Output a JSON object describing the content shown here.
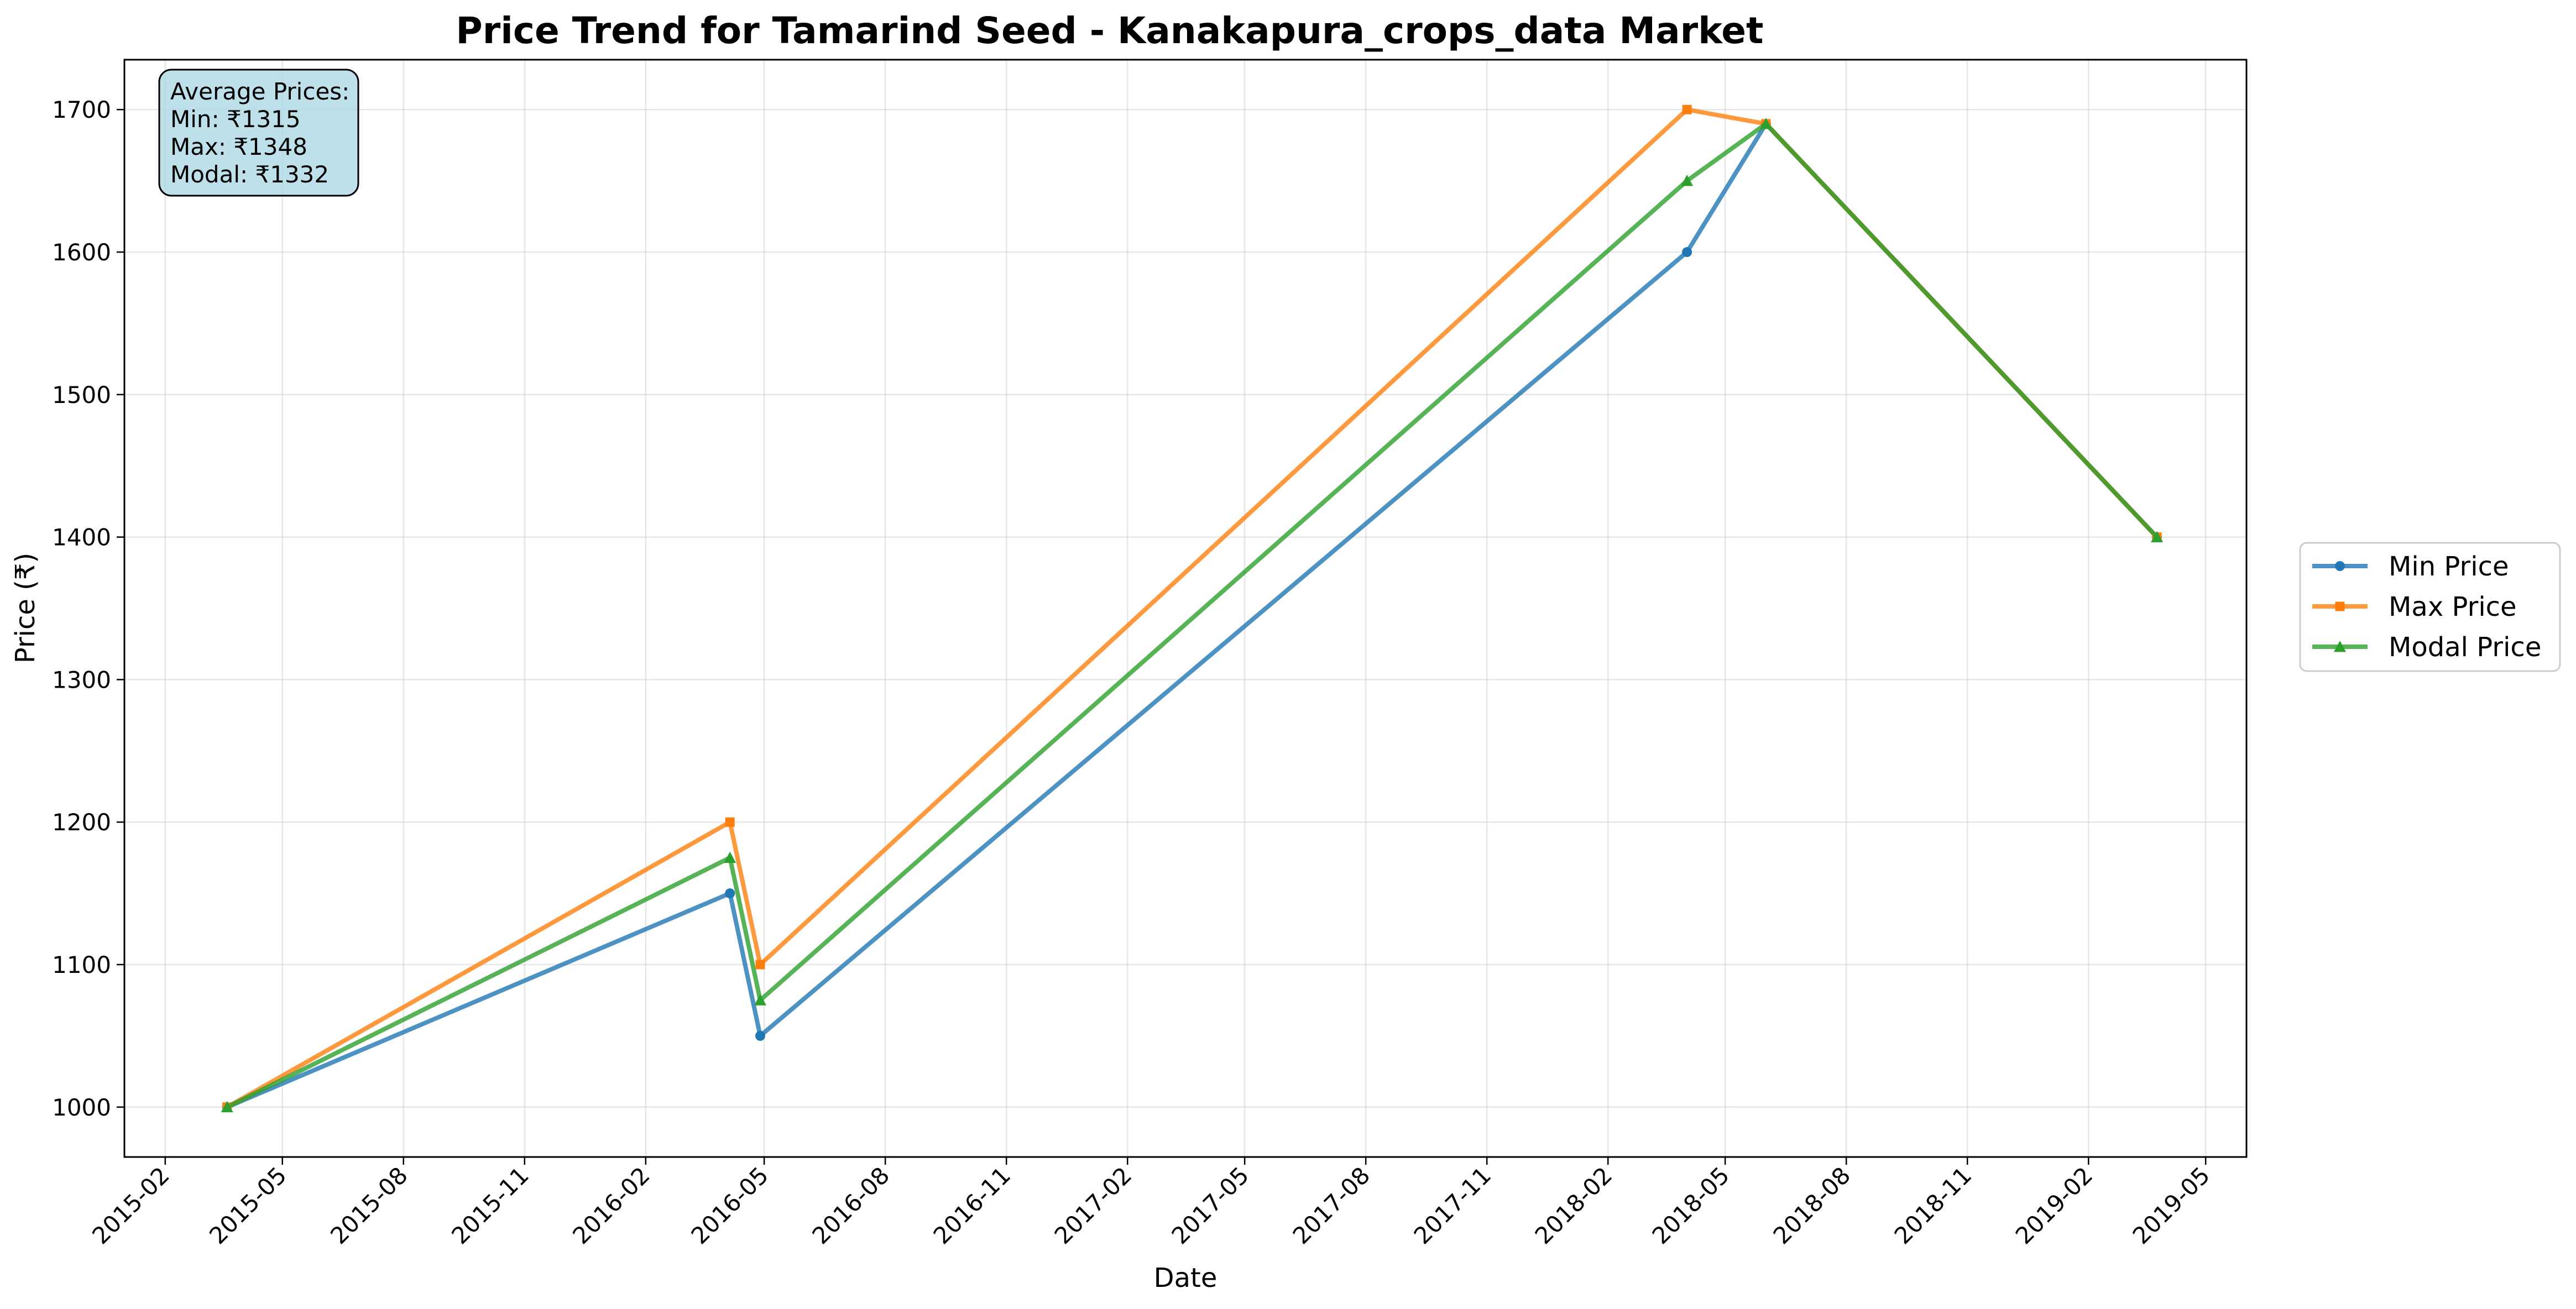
{
  "chart_data": {
    "type": "line",
    "title": "Price Trend for Tamarind Seed - Kanakapura_crops_data Market",
    "xlabel": "Date",
    "ylabel": "Price (₹)",
    "x_range": [
      "2015-01-01",
      "2019-06-01"
    ],
    "ylim": [
      965,
      1735
    ],
    "grid": true,
    "legend_position": "right",
    "x_ticks": [
      "2015-02",
      "2015-05",
      "2015-08",
      "2015-11",
      "2016-02",
      "2016-05",
      "2016-08",
      "2016-11",
      "2017-02",
      "2017-05",
      "2017-08",
      "2017-11",
      "2018-02",
      "2018-05",
      "2018-08",
      "2018-11",
      "2019-02",
      "2019-05"
    ],
    "y_ticks": [
      1000,
      1100,
      1200,
      1300,
      1400,
      1500,
      1600,
      1700
    ],
    "x": [
      "2015-03-20",
      "2016-04-05",
      "2016-04-28",
      "2018-04-02",
      "2018-06-01",
      "2019-03-25"
    ],
    "series": [
      {
        "name": "Min Price",
        "color": "#1f77b4",
        "marker": "circle",
        "values": [
          1000,
          1150,
          1050,
          1600,
          1690,
          1400
        ]
      },
      {
        "name": "Max Price",
        "color": "#ff7f0e",
        "marker": "square",
        "values": [
          1000,
          1200,
          1100,
          1700,
          1690,
          1400
        ]
      },
      {
        "name": "Modal Price",
        "color": "#2ca02c",
        "marker": "triangle",
        "values": [
          1000,
          1175,
          1075,
          1650,
          1690,
          1400
        ]
      }
    ],
    "annotation": {
      "lines": [
        "Average Prices:",
        "Min: ₹1315",
        "Max: ₹1348",
        "Modal: ₹1332"
      ],
      "box_color": "#add8e6"
    }
  }
}
